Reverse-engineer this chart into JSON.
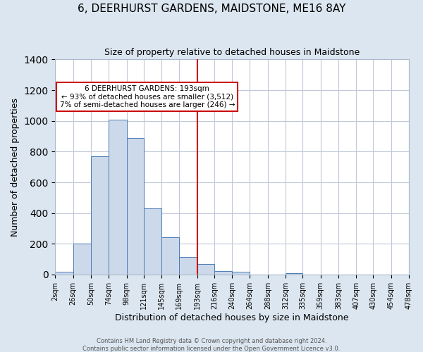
{
  "title": "6, DEERHURST GARDENS, MAIDSTONE, ME16 8AY",
  "subtitle": "Size of property relative to detached houses in Maidstone",
  "xlabel": "Distribution of detached houses by size in Maidstone",
  "ylabel": "Number of detached properties",
  "bar_edges": [
    2,
    26,
    50,
    74,
    98,
    121,
    145,
    169,
    193,
    216,
    240,
    264,
    288,
    312,
    335,
    359,
    383,
    407,
    430,
    454,
    478
  ],
  "bar_heights": [
    20,
    200,
    770,
    1010,
    890,
    430,
    245,
    115,
    70,
    25,
    20,
    0,
    0,
    10,
    0,
    0,
    0,
    0,
    0,
    0
  ],
  "bar_color": "#ccd9ea",
  "bar_edge_color": "#4d7ab5",
  "vline_x": 193,
  "vline_color": "#cc0000",
  "annotation_title": "6 DEERHURST GARDENS: 193sqm",
  "annotation_line1": "← 93% of detached houses are smaller (3,512)",
  "annotation_line2": "7% of semi-detached houses are larger (246) →",
  "annotation_box_color": "#ffffff",
  "annotation_box_edge": "#cc0000",
  "ylim": [
    0,
    1400
  ],
  "tick_labels": [
    "2sqm",
    "26sqm",
    "50sqm",
    "74sqm",
    "98sqm",
    "121sqm",
    "145sqm",
    "169sqm",
    "193sqm",
    "216sqm",
    "240sqm",
    "264sqm",
    "288sqm",
    "312sqm",
    "335sqm",
    "359sqm",
    "383sqm",
    "407sqm",
    "430sqm",
    "454sqm",
    "478sqm"
  ],
  "footer1": "Contains HM Land Registry data © Crown copyright and database right 2024.",
  "footer2": "Contains public sector information licensed under the Open Government Licence v3.0.",
  "fig_bg_color": "#dce6f0",
  "plot_bg_color": "#ffffff",
  "grid_color": "#c0c8d8",
  "title_fontsize": 11,
  "subtitle_fontsize": 9,
  "tick_fontsize": 7,
  "ylabel_fontsize": 9,
  "xlabel_fontsize": 9,
  "footer_fontsize": 6
}
